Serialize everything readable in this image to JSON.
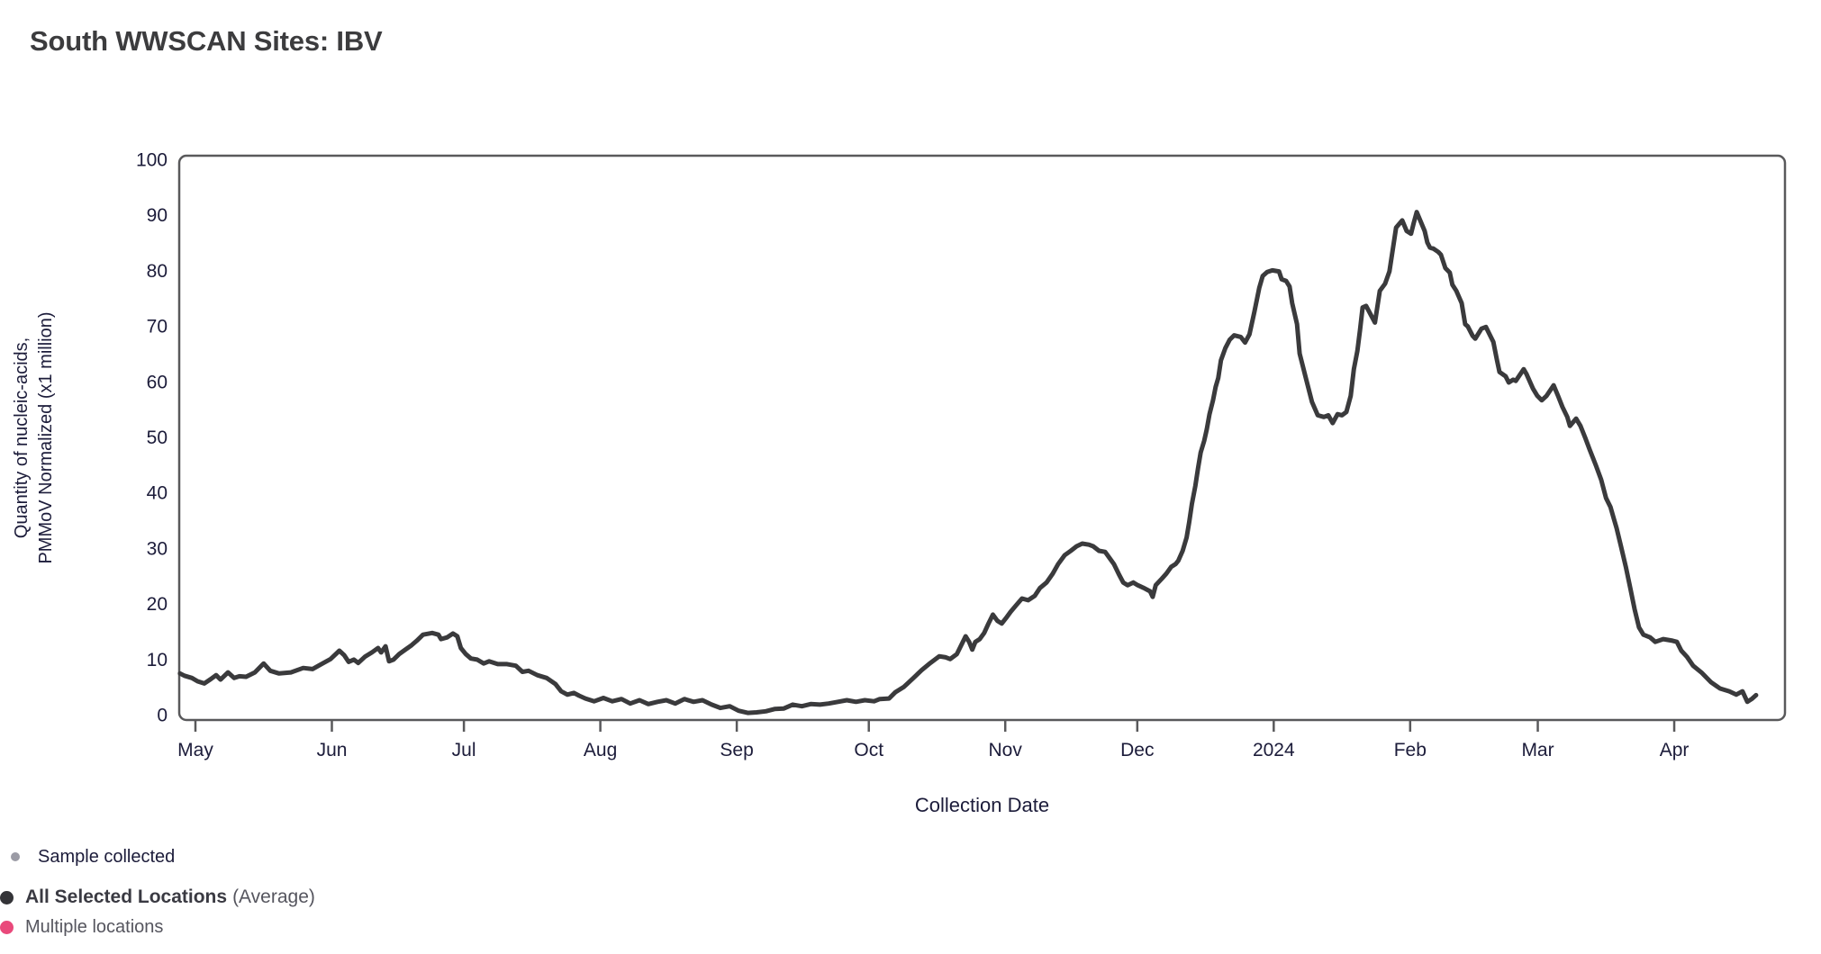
{
  "title": "South WWSCAN Sites: IBV",
  "legend": {
    "sample": {
      "label": "Sample collected",
      "dot_color": "#9b9ba5"
    },
    "average": {
      "label_bold": "All Selected Locations",
      "label_suffix": "(Average)",
      "dot_color": "#343438"
    },
    "multiple": {
      "label": "Multiple locations",
      "dot_color": "#e9497b"
    }
  },
  "chart_data": {
    "type": "line",
    "title": "South WWSCAN Sites: IBV",
    "xlabel": "Collection Date",
    "ylabel_lines": [
      "Quantity of nucleic-acids,",
      "PMMoV Normalized (x1 million)"
    ],
    "ylim": [
      0,
      100
    ],
    "y_ticks": [
      0,
      10,
      20,
      30,
      40,
      50,
      60,
      70,
      80,
      90,
      100
    ],
    "x_unit": "days since 2023-05-01",
    "x_ticks": [
      {
        "label": "May",
        "day": 0
      },
      {
        "label": "Jun",
        "day": 31
      },
      {
        "label": "Jul",
        "day": 61
      },
      {
        "label": "Aug",
        "day": 92
      },
      {
        "label": "Sep",
        "day": 123
      },
      {
        "label": "Oct",
        "day": 153
      },
      {
        "label": "Nov",
        "day": 184
      },
      {
        "label": "Dec",
        "day": 214
      },
      {
        "label": "2024",
        "day": 245
      },
      {
        "label": "Feb",
        "day": 276
      },
      {
        "label": "Mar",
        "day": 305
      },
      {
        "label": "Apr",
        "day": 336
      }
    ],
    "grid": false,
    "legend_position": "bottom-left",
    "border_color": "#59595b",
    "series": [
      {
        "name": "All Selected Locations (Average)",
        "color": "#3a3a3c",
        "width": 5,
        "points": [
          [
            -3.5,
            7.4
          ],
          [
            -2.5,
            7.0
          ],
          [
            -0.8,
            6.6
          ],
          [
            0.5,
            6.0
          ],
          [
            2,
            5.6
          ],
          [
            3.5,
            6.4
          ],
          [
            4.7,
            7.1
          ],
          [
            5.7,
            6.3
          ],
          [
            7.4,
            7.6
          ],
          [
            8.8,
            6.6
          ],
          [
            10,
            6.9
          ],
          [
            11.5,
            6.8
          ],
          [
            13.5,
            7.6
          ],
          [
            15.5,
            9.2
          ],
          [
            17,
            7.9
          ],
          [
            19,
            7.4
          ],
          [
            21.7,
            7.6
          ],
          [
            24.5,
            8.4
          ],
          [
            26.6,
            8.2
          ],
          [
            28.6,
            9.1
          ],
          [
            30.7,
            10
          ],
          [
            32.7,
            11.5
          ],
          [
            33.8,
            10.7
          ],
          [
            34.8,
            9.5
          ],
          [
            36,
            9.9
          ],
          [
            37,
            9.3
          ],
          [
            38.5,
            10.4
          ],
          [
            40.1,
            11.2
          ],
          [
            41.5,
            12
          ],
          [
            42.2,
            11.2
          ],
          [
            43.2,
            12.3
          ],
          [
            44,
            9.6
          ],
          [
            45,
            9.9
          ],
          [
            46.3,
            10.9
          ],
          [
            47.7,
            11.7
          ],
          [
            49.1,
            12.5
          ],
          [
            50.3,
            13.3
          ],
          [
            51.7,
            14.4
          ],
          [
            53.8,
            14.7
          ],
          [
            55.2,
            14.4
          ],
          [
            55.8,
            13.6
          ],
          [
            57.2,
            13.9
          ],
          [
            58.5,
            14.6
          ],
          [
            59.5,
            14.1
          ],
          [
            60.3,
            12
          ],
          [
            61.4,
            10.9
          ],
          [
            62.6,
            10.1
          ],
          [
            64,
            9.9
          ],
          [
            65.5,
            9.2
          ],
          [
            66.7,
            9.6
          ],
          [
            68.7,
            9.1
          ],
          [
            70.8,
            9.1
          ],
          [
            72.8,
            8.8
          ],
          [
            74.3,
            7.7
          ],
          [
            75.7,
            7.9
          ],
          [
            77.7,
            7.1
          ],
          [
            79.8,
            6.6
          ],
          [
            81.8,
            5.5
          ],
          [
            83.1,
            4.2
          ],
          [
            84.5,
            3.6
          ],
          [
            86,
            3.9
          ],
          [
            87.2,
            3.4
          ],
          [
            88.6,
            2.9
          ],
          [
            90.6,
            2.4
          ],
          [
            92.7,
            3
          ],
          [
            94.7,
            2.4
          ],
          [
            96.8,
            2.8
          ],
          [
            98.8,
            2
          ],
          [
            100.9,
            2.6
          ],
          [
            102.9,
            1.9
          ],
          [
            105,
            2.3
          ],
          [
            107,
            2.6
          ],
          [
            109,
            2
          ],
          [
            111.1,
            2.8
          ],
          [
            113.2,
            2.3
          ],
          [
            115.2,
            2.6
          ],
          [
            117.3,
            1.8
          ],
          [
            119.3,
            1.2
          ],
          [
            121.4,
            1.5
          ],
          [
            123.4,
            0.7
          ],
          [
            125.5,
            0.3
          ],
          [
            127.5,
            0.4
          ],
          [
            129.6,
            0.6
          ],
          [
            131.6,
            1
          ],
          [
            133.7,
            1.1
          ],
          [
            135.7,
            1.8
          ],
          [
            137.8,
            1.5
          ],
          [
            139.8,
            1.9
          ],
          [
            141.9,
            1.8
          ],
          [
            143.9,
            2
          ],
          [
            146,
            2.3
          ],
          [
            148,
            2.6
          ],
          [
            150.1,
            2.3
          ],
          [
            152.1,
            2.6
          ],
          [
            154.2,
            2.4
          ],
          [
            155.5,
            2.8
          ],
          [
            157.6,
            2.9
          ],
          [
            159,
            4
          ],
          [
            161,
            5
          ],
          [
            163,
            6.5
          ],
          [
            165,
            8
          ],
          [
            167,
            9.3
          ],
          [
            169,
            10.5
          ],
          [
            170.5,
            10.3
          ],
          [
            171.5,
            10
          ],
          [
            173,
            10.9
          ],
          [
            175,
            14.1
          ],
          [
            175.8,
            13.1
          ],
          [
            176.5,
            11.7
          ],
          [
            177.2,
            13.1
          ],
          [
            178.2,
            13.6
          ],
          [
            179.2,
            14.7
          ],
          [
            180.2,
            16.4
          ],
          [
            181.2,
            18
          ],
          [
            182.2,
            16.9
          ],
          [
            183.2,
            16.4
          ],
          [
            184.2,
            17.4
          ],
          [
            185.2,
            18.5
          ],
          [
            186.6,
            19.8
          ],
          [
            187.8,
            20.9
          ],
          [
            189.2,
            20.6
          ],
          [
            190.7,
            21.4
          ],
          [
            191.9,
            22.8
          ],
          [
            193.4,
            23.8
          ],
          [
            194.8,
            25.4
          ],
          [
            196,
            27.1
          ],
          [
            197.5,
            28.7
          ],
          [
            198.9,
            29.5
          ],
          [
            200.2,
            30.3
          ],
          [
            201.5,
            30.8
          ],
          [
            203,
            30.6
          ],
          [
            204,
            30.3
          ],
          [
            205.3,
            29.5
          ],
          [
            206.7,
            29.3
          ],
          [
            207.7,
            28.2
          ],
          [
            208.7,
            27.1
          ],
          [
            209.8,
            25.3
          ],
          [
            210.8,
            23.8
          ],
          [
            211.8,
            23.3
          ],
          [
            213.1,
            23.8
          ],
          [
            214.1,
            23.3
          ],
          [
            215.5,
            22.8
          ],
          [
            216.9,
            22.2
          ],
          [
            217.5,
            21.2
          ],
          [
            218.2,
            23.3
          ],
          [
            219.6,
            24.5
          ],
          [
            220.6,
            25.4
          ],
          [
            221.7,
            26.6
          ],
          [
            222.7,
            27.1
          ],
          [
            223.3,
            27.7
          ],
          [
            224.3,
            29.5
          ],
          [
            225.2,
            31.9
          ],
          [
            225.8,
            34.7
          ],
          [
            226.4,
            37.9
          ],
          [
            227.2,
            41.2
          ],
          [
            227.8,
            44.4
          ],
          [
            228.4,
            47.2
          ],
          [
            229.2,
            49.3
          ],
          [
            229.8,
            51.4
          ],
          [
            230.4,
            54.1
          ],
          [
            231.2,
            56.6
          ],
          [
            231.8,
            59
          ],
          [
            232.4,
            60.6
          ],
          [
            233,
            63.8
          ],
          [
            234,
            66
          ],
          [
            235,
            67.5
          ],
          [
            236,
            68.3
          ],
          [
            237.5,
            68
          ],
          [
            238.5,
            67
          ],
          [
            239.5,
            68.5
          ],
          [
            240.6,
            72.5
          ],
          [
            241.7,
            76.8
          ],
          [
            242.5,
            79
          ],
          [
            243.5,
            79.7
          ],
          [
            244.7,
            80
          ],
          [
            246.2,
            79.8
          ],
          [
            246.8,
            78.4
          ],
          [
            247.8,
            78.1
          ],
          [
            248.6,
            77.1
          ],
          [
            249.2,
            74.1
          ],
          [
            250.3,
            70.3
          ],
          [
            250.9,
            65
          ],
          [
            252.3,
            60.6
          ],
          [
            253.7,
            56.3
          ],
          [
            255,
            53.9
          ],
          [
            256.4,
            53.6
          ],
          [
            257.4,
            53.9
          ],
          [
            258.4,
            52.5
          ],
          [
            259.5,
            54.1
          ],
          [
            260.5,
            53.9
          ],
          [
            261.5,
            54.5
          ],
          [
            262.5,
            57.4
          ],
          [
            263.2,
            62.2
          ],
          [
            264,
            65.5
          ],
          [
            264.6,
            69.2
          ],
          [
            265.2,
            73.3
          ],
          [
            266,
            73.6
          ],
          [
            268,
            70.6
          ],
          [
            269.1,
            76.3
          ],
          [
            270.3,
            77.6
          ],
          [
            271.3,
            79.8
          ],
          [
            272.8,
            87.7
          ],
          [
            274.2,
            89
          ],
          [
            275.2,
            87.1
          ],
          [
            276.2,
            86.6
          ],
          [
            276.8,
            88.5
          ],
          [
            277.5,
            90.5
          ],
          [
            279.3,
            87.1
          ],
          [
            279.9,
            85
          ],
          [
            280.5,
            84.1
          ],
          [
            281.3,
            83.9
          ],
          [
            282.4,
            83.3
          ],
          [
            283,
            82.8
          ],
          [
            284,
            80.4
          ],
          [
            285,
            79.6
          ],
          [
            285.6,
            77.4
          ],
          [
            286.5,
            76.3
          ],
          [
            287.7,
            74.1
          ],
          [
            288.5,
            70.3
          ],
          [
            289.1,
            69.9
          ],
          [
            290.2,
            68.2
          ],
          [
            290.8,
            67.7
          ],
          [
            292.2,
            69.5
          ],
          [
            293.2,
            69.8
          ],
          [
            294.9,
            67.1
          ],
          [
            295.7,
            63.9
          ],
          [
            296.3,
            61.7
          ],
          [
            297.7,
            60.9
          ],
          [
            298.4,
            59.8
          ],
          [
            299.4,
            60.3
          ],
          [
            300,
            60.1
          ],
          [
            301.8,
            62.2
          ],
          [
            302.4,
            61.4
          ],
          [
            303.9,
            58.7
          ],
          [
            304.9,
            57.4
          ],
          [
            305.9,
            56.6
          ],
          [
            307,
            57.4
          ],
          [
            308.6,
            59.3
          ],
          [
            309.6,
            57.4
          ],
          [
            310.6,
            55.4
          ],
          [
            311.7,
            53.6
          ],
          [
            312.3,
            52
          ],
          [
            313.7,
            53.3
          ],
          [
            314.7,
            52
          ],
          [
            315.8,
            49.8
          ],
          [
            316.8,
            47.7
          ],
          [
            318.2,
            44.9
          ],
          [
            319.4,
            42.3
          ],
          [
            320.5,
            39
          ],
          [
            321.5,
            37.4
          ],
          [
            322.3,
            35.2
          ],
          [
            322.9,
            33.6
          ],
          [
            323.9,
            30.3
          ],
          [
            325,
            26.6
          ],
          [
            326,
            22.8
          ],
          [
            327,
            19
          ],
          [
            328,
            15.7
          ],
          [
            329,
            14.4
          ],
          [
            330.5,
            13.9
          ],
          [
            331.7,
            13.1
          ],
          [
            333.5,
            13.6
          ],
          [
            335.6,
            13.3
          ],
          [
            336.6,
            13.1
          ],
          [
            337.6,
            11.5
          ],
          [
            338.9,
            10.4
          ],
          [
            340.3,
            8.8
          ],
          [
            342.3,
            7.5
          ],
          [
            344.4,
            5.8
          ],
          [
            346.4,
            4.7
          ],
          [
            348.5,
            4.2
          ],
          [
            350.1,
            3.6
          ],
          [
            351.5,
            4.2
          ],
          [
            352.6,
            2.3
          ],
          [
            353.6,
            2.8
          ],
          [
            354.6,
            3.5
          ]
        ]
      }
    ]
  }
}
